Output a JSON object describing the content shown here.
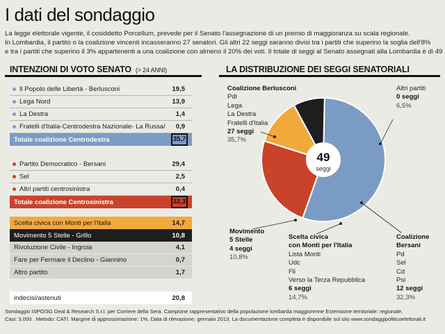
{
  "title": "I dati del sondaggio",
  "intro": [
    "La legge elettorale vigente, il cosiddetto Porcellum, prevede per il Senato l'assegnazione di un premio di maggioranza su scala regionale.",
    "In Lombardia, il partito o la coalizione vincenti incasseranno 27 senatori. Gli altri 22 seggi saranno divisi tra i partiti che superino la soglia dell'8%",
    "e tra i partiti che superino il 3% appartenenti a una coalizione con almeno il 20% dei voti. Il totale di seggi al Senato assegnati alla Lombardia è di 49"
  ],
  "left": {
    "heading": "INTENZIONI DI VOTO SENATO",
    "subheading": "(> 24 ANNI)"
  },
  "right": {
    "heading": "LA DISTRIBUZIONE DEI SEGGI SENATORIALI"
  },
  "colors": {
    "centrodestra": "#7a9cc4",
    "centrosinistra": "#c9432b",
    "monti": "#f2a93b",
    "m5s": "#1e1e1e",
    "other_rows": "#d5d5cf",
    "total_right": "#e8c8bd"
  },
  "rows": [
    {
      "label": "Il Popolo delle Libertà - Berlusconi",
      "value": "19,5",
      "group": "cd"
    },
    {
      "label": "Lega Nord",
      "value": "13,9",
      "group": "cd"
    },
    {
      "label": "La Destra",
      "value": "1,4",
      "group": "cd"
    },
    {
      "label": "Fratelli d'Italia-Centrodestra Nazionale- La Russa/Meloni",
      "value": "0,9",
      "group": "cd"
    },
    {
      "label": "Totale coalizione Centrodestra",
      "value": "35,7",
      "group": "cd-total"
    },
    {
      "label": "Partito Democratico - Bersani",
      "value": "29,4",
      "group": "cs"
    },
    {
      "label": "Sel",
      "value": "2,5",
      "group": "cs"
    },
    {
      "label": "Altri partiti centrosinistra",
      "value": "0,4",
      "group": "cs"
    },
    {
      "label": "Totale coalizione Centrosinistra",
      "value": "32,3",
      "group": "cs-total"
    },
    {
      "label": "Scelta civica con Monti per l'Italia",
      "value": "14,7",
      "group": "monti"
    },
    {
      "label": "Movimento 5 Stelle - Grillo",
      "value": "10,8",
      "group": "m5s"
    },
    {
      "label": "Rivoluzione Civile - Ingroia",
      "value": "4,1",
      "group": "other"
    },
    {
      "label": "Fare per Fermare il Declino - Giannino",
      "value": "0,7",
      "group": "other"
    },
    {
      "label": "Altro partito",
      "value": "1,7",
      "group": "other"
    },
    {
      "label": "indecisi/astenuti",
      "value": "20,8",
      "group": "plain"
    }
  ],
  "chart_data": {
    "type": "pie",
    "title": "LA DISTRIBUZIONE DEI SEGGI SENATORIALI",
    "center_value": "49",
    "center_label": "seggi",
    "total": 49,
    "slices": [
      {
        "name": "Coalizione Berlusconi",
        "parties": [
          "Pdl",
          "Lega",
          "La Destra",
          "Fratelli d'Italia"
        ],
        "seats": 27,
        "seats_label": "27 seggi",
        "pct_label": "35,7%",
        "color": "#7a9cc4"
      },
      {
        "name": "Coalizione Bersani",
        "parties": [
          "Pd",
          "Sel",
          "Cd",
          "Psi"
        ],
        "seats": 12,
        "seats_label": "12 seggi",
        "pct_label": "32,3%",
        "color": "#c9432b"
      },
      {
        "name": "Scelta civica con Monti per l'Italia",
        "parties": [
          "Lista Monti",
          "Udc",
          "Fli",
          "Verso la Terza Repubblica"
        ],
        "seats": 6,
        "seats_label": "6 seggi",
        "pct_label": "14,7%",
        "color": "#f2a93b"
      },
      {
        "name": "Movimento 5 Stelle",
        "parties": [],
        "seats": 4,
        "seats_label": "4 seggi",
        "pct_label": "10,8%",
        "color": "#1e1e1e"
      },
      {
        "name": "Altri partiti",
        "parties": [],
        "seats": 0,
        "seats_label": "0 seggi",
        "pct_label": "6,5%",
        "color": "#ebebe6"
      }
    ]
  },
  "footer": [
    "Sondaggio ISPO/3G Deal & Research S.r.l. per Corriere della Sera. Campione rappresentativo della popolazione lombarda maggiorenne Estensione territoriale: regionale.",
    "Casi: 3.000 . Metodo: CATI. Margine di approssimazione: 1%. Data di rilevazione: gennaio 2013. La documentazione completa è disponibile sul sito www.sondaggipoliticoelettorali.it"
  ]
}
